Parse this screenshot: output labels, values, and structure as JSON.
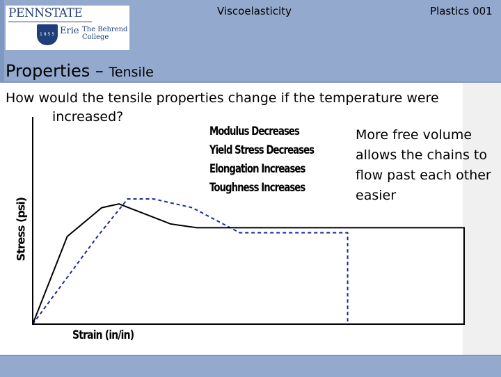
{
  "header": {
    "logo": {
      "name": "PENNSTATE",
      "campus": "Erie",
      "college_line1": "The Behrend",
      "college_line2": "College",
      "year": "1855"
    },
    "subject": "Viscoelasticity",
    "course": "Plastics 001"
  },
  "slide": {
    "title_main": "Properties – ",
    "title_sub": "Tensile",
    "question_line1": "How would the tensile properties change if the temperature were",
    "question_line2": "increased?",
    "note": "More free volume allows the chains to flow past each other easier",
    "effects": [
      "Modulus Decreases",
      "Yield Stress Decreases",
      "Elongation Increases",
      "Toughness Increases"
    ]
  },
  "chart_data": {
    "type": "line",
    "xlabel": "Strain (in/in)",
    "ylabel": "Stress (psi)",
    "grid": false,
    "series": [
      {
        "style": "solid",
        "color": "#000000",
        "x": [
          0,
          0.08,
          0.16,
          0.2,
          0.26,
          0.32,
          0.38,
          1.0,
          1.0
        ],
        "y": [
          0,
          0.7,
          0.93,
          0.96,
          0.88,
          0.8,
          0.77,
          0.77,
          0
        ]
      },
      {
        "style": "dashed",
        "color": "#1a2a9a",
        "x": [
          0,
          0.15,
          0.22,
          0.28,
          0.37,
          0.48,
          0.73,
          0.73
        ],
        "y": [
          0,
          0.7,
          1.0,
          1.0,
          0.93,
          0.73,
          0.73,
          0
        ]
      }
    ]
  }
}
